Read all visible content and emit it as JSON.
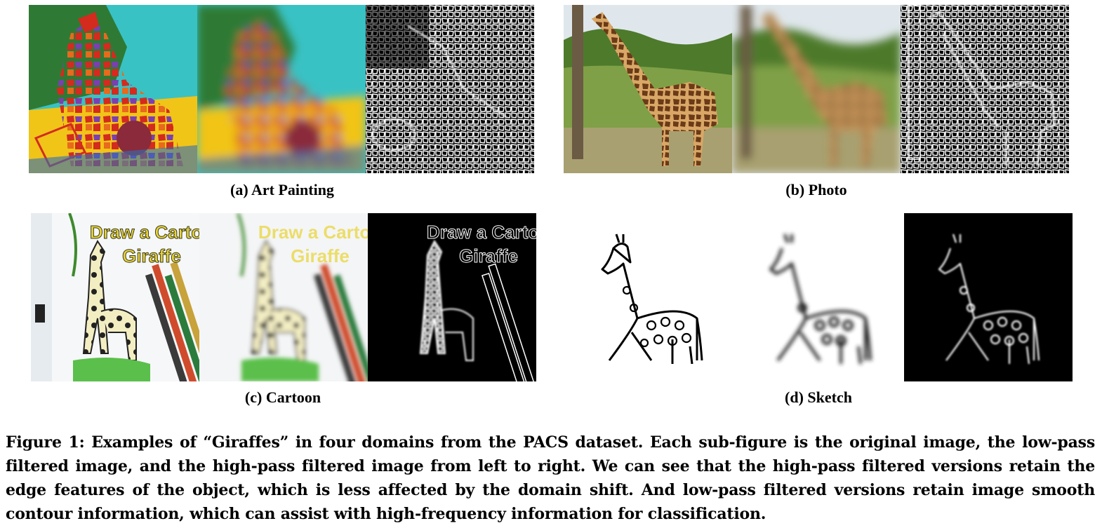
{
  "subfigures": [
    {
      "id": "a",
      "caption": "(a) Art Painting"
    },
    {
      "id": "b",
      "caption": "(b) Photo"
    },
    {
      "id": "c",
      "caption": "(c) Cartoon",
      "image_text_line1": "Draw a Cartoon",
      "image_text_line2": "Giraffe"
    },
    {
      "id": "d",
      "caption": "(d) Sketch"
    }
  ],
  "figure_caption": "Figure 1: Examples of “Giraffes” in four domains from the PACS dataset. Each sub-figure is the original image, the low-pass filtered image, and the high-pass filtered image from left to right. We can see that the high-pass filtered versions retain the edge features of the object, which is less affected by the domain shift. And low-pass filtered versions retain image smooth contour information, which can assist with high-frequency information for classification."
}
